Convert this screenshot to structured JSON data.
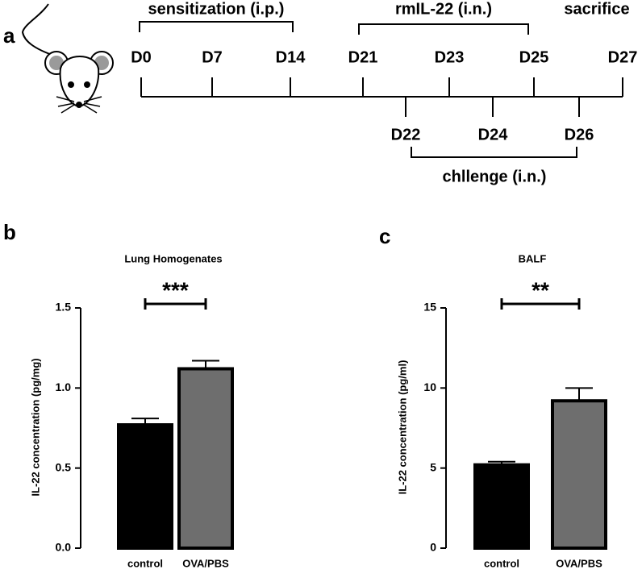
{
  "panel_labels": [
    "a",
    "b",
    "c"
  ],
  "timeline": {
    "sensitization": "sensitization (i.p.)",
    "treatment": "rmIL-22 (i.n.)",
    "sacrifice": "sacrifice",
    "challenge": "chllenge (i.n.)",
    "days_top": [
      "D0",
      "D7",
      "D14",
      "D21",
      "D23",
      "D25",
      "D27"
    ],
    "days_bottom": [
      "D22",
      "D24",
      "D26"
    ]
  },
  "chart_data": [
    {
      "type": "bar",
      "title": "Lung Homogenates",
      "y_label": "IL-22 concentration (pg/mg)",
      "categories": [
        "control",
        "OVA/PBS"
      ],
      "values": [
        0.77,
        1.12
      ],
      "errors": [
        0.04,
        0.05
      ],
      "colors": [
        "#000000",
        "#6e6e6e"
      ],
      "edgecolor": "#000000",
      "ylim": [
        0,
        1.5
      ],
      "yticks": [
        {
          "value": 0,
          "label": "0.0"
        },
        0.5,
        {
          "value": 1,
          "label": "1.0"
        },
        1.5
      ],
      "significance": "***"
    },
    {
      "type": "bar",
      "title": "BALF",
      "y_label": "IL-22 concentration (pg/ml)",
      "categories": [
        "control",
        "OVA/PBS"
      ],
      "values": [
        5.2,
        9.2
      ],
      "errors": [
        0.2,
        0.8
      ],
      "colors": [
        "#000000",
        "#6e6e6e"
      ],
      "edgecolor": "#000000",
      "ylim": [
        0,
        15
      ],
      "yticks": [
        0,
        5,
        10,
        15
      ],
      "significance": "**"
    }
  ]
}
